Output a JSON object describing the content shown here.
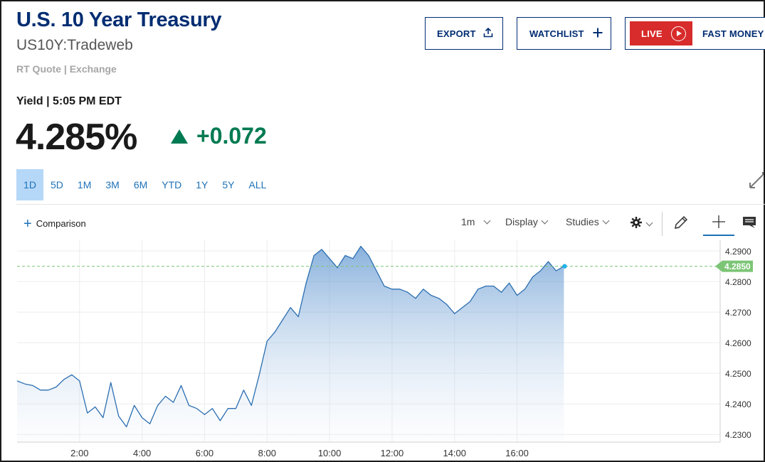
{
  "header": {
    "title": "U.S. 10 Year Treasury",
    "symbol": "US10Y:Tradeweb",
    "source": "RT Quote | Exchange"
  },
  "quote": {
    "yield_label": "Yield | 5:05 PM EDT",
    "price": "4.285%",
    "change": "+0.072",
    "direction": "up"
  },
  "actions": {
    "export_label": "EXPORT",
    "watchlist_label": "WATCHLIST",
    "live_label": "LIVE",
    "fast_money_label": "FAST MONEY"
  },
  "ranges": [
    "1D",
    "5D",
    "1M",
    "3M",
    "6M",
    "YTD",
    "1Y",
    "5Y",
    "ALL"
  ],
  "active_range": "1D",
  "toolbar": {
    "comparison_label": "Comparison",
    "interval_label": "1m",
    "display_label": "Display",
    "studies_label": "Studies"
  },
  "colors": {
    "brand": "#002d72",
    "link": "#1e72b8",
    "up": "#007a51",
    "live": "#d82b2b",
    "line": "#2b6eb0",
    "last_price_badge": "#7cc576"
  },
  "icons": [
    "export-icon",
    "plus-icon",
    "play-icon",
    "expand-icon",
    "gear-icon",
    "pencil-icon",
    "crosshair-icon",
    "comment-icon"
  ],
  "chart_data": {
    "type": "area",
    "x_tick_labels": [
      "2:00",
      "4:00",
      "6:00",
      "8:00",
      "10:00",
      "12:00",
      "14:00",
      "16:00"
    ],
    "y_tick_labels": [
      "4.2900",
      "4.2800",
      "4.2700",
      "4.2600",
      "4.2500",
      "4.2400",
      "4.2300"
    ],
    "ylim": [
      4.2275,
      4.2935
    ],
    "xlim_hours": [
      0.0,
      22.5
    ],
    "last_price_label": "4.2850",
    "last_price": 4.285,
    "grid": true,
    "series": [
      {
        "x": [
          0.0,
          0.25,
          0.5,
          0.75,
          1.0,
          1.25,
          1.5,
          1.75,
          2.0,
          2.25,
          2.5,
          2.75,
          3.0,
          3.25,
          3.5,
          3.75,
          4.0,
          4.25,
          4.5,
          4.75,
          5.0,
          5.25,
          5.5,
          5.75,
          6.0,
          6.25,
          6.5,
          6.75,
          7.0,
          7.25,
          7.5,
          7.75,
          8.0,
          8.25,
          8.5,
          8.75,
          9.0,
          9.25,
          9.5,
          9.75,
          10.0,
          10.25,
          10.5,
          10.75,
          11.0,
          11.25,
          11.5,
          11.75,
          12.0,
          12.25,
          12.5,
          12.75,
          13.0,
          13.25,
          13.5,
          13.75,
          14.0,
          14.25,
          14.5,
          14.75,
          15.0,
          15.25,
          15.5,
          15.75,
          16.0,
          16.25,
          16.5,
          16.75,
          17.0,
          17.25,
          17.5
        ],
        "y": [
          4.2475,
          4.2465,
          4.246,
          4.2445,
          4.2445,
          4.2455,
          4.248,
          4.2495,
          4.2475,
          4.237,
          4.239,
          4.2355,
          4.247,
          4.236,
          4.2325,
          4.2395,
          4.2355,
          4.2335,
          4.2395,
          4.2425,
          4.2405,
          4.246,
          4.2395,
          4.2385,
          4.2365,
          4.2385,
          4.2345,
          4.2385,
          4.2385,
          4.2445,
          4.2395,
          4.2495,
          4.2605,
          4.2635,
          4.2675,
          4.2715,
          4.2685,
          4.2795,
          4.2885,
          4.2905,
          4.2875,
          4.2845,
          4.2885,
          4.2875,
          4.2915,
          4.2885,
          4.2835,
          4.2785,
          4.2775,
          4.2775,
          4.2765,
          4.2745,
          4.2775,
          4.2755,
          4.2745,
          4.2725,
          4.2695,
          4.2715,
          4.2735,
          4.2775,
          4.2785,
          4.2785,
          4.2765,
          4.2795,
          4.2755,
          4.2775,
          4.2815,
          4.2835,
          4.2865,
          4.2835,
          4.285
        ]
      }
    ]
  }
}
